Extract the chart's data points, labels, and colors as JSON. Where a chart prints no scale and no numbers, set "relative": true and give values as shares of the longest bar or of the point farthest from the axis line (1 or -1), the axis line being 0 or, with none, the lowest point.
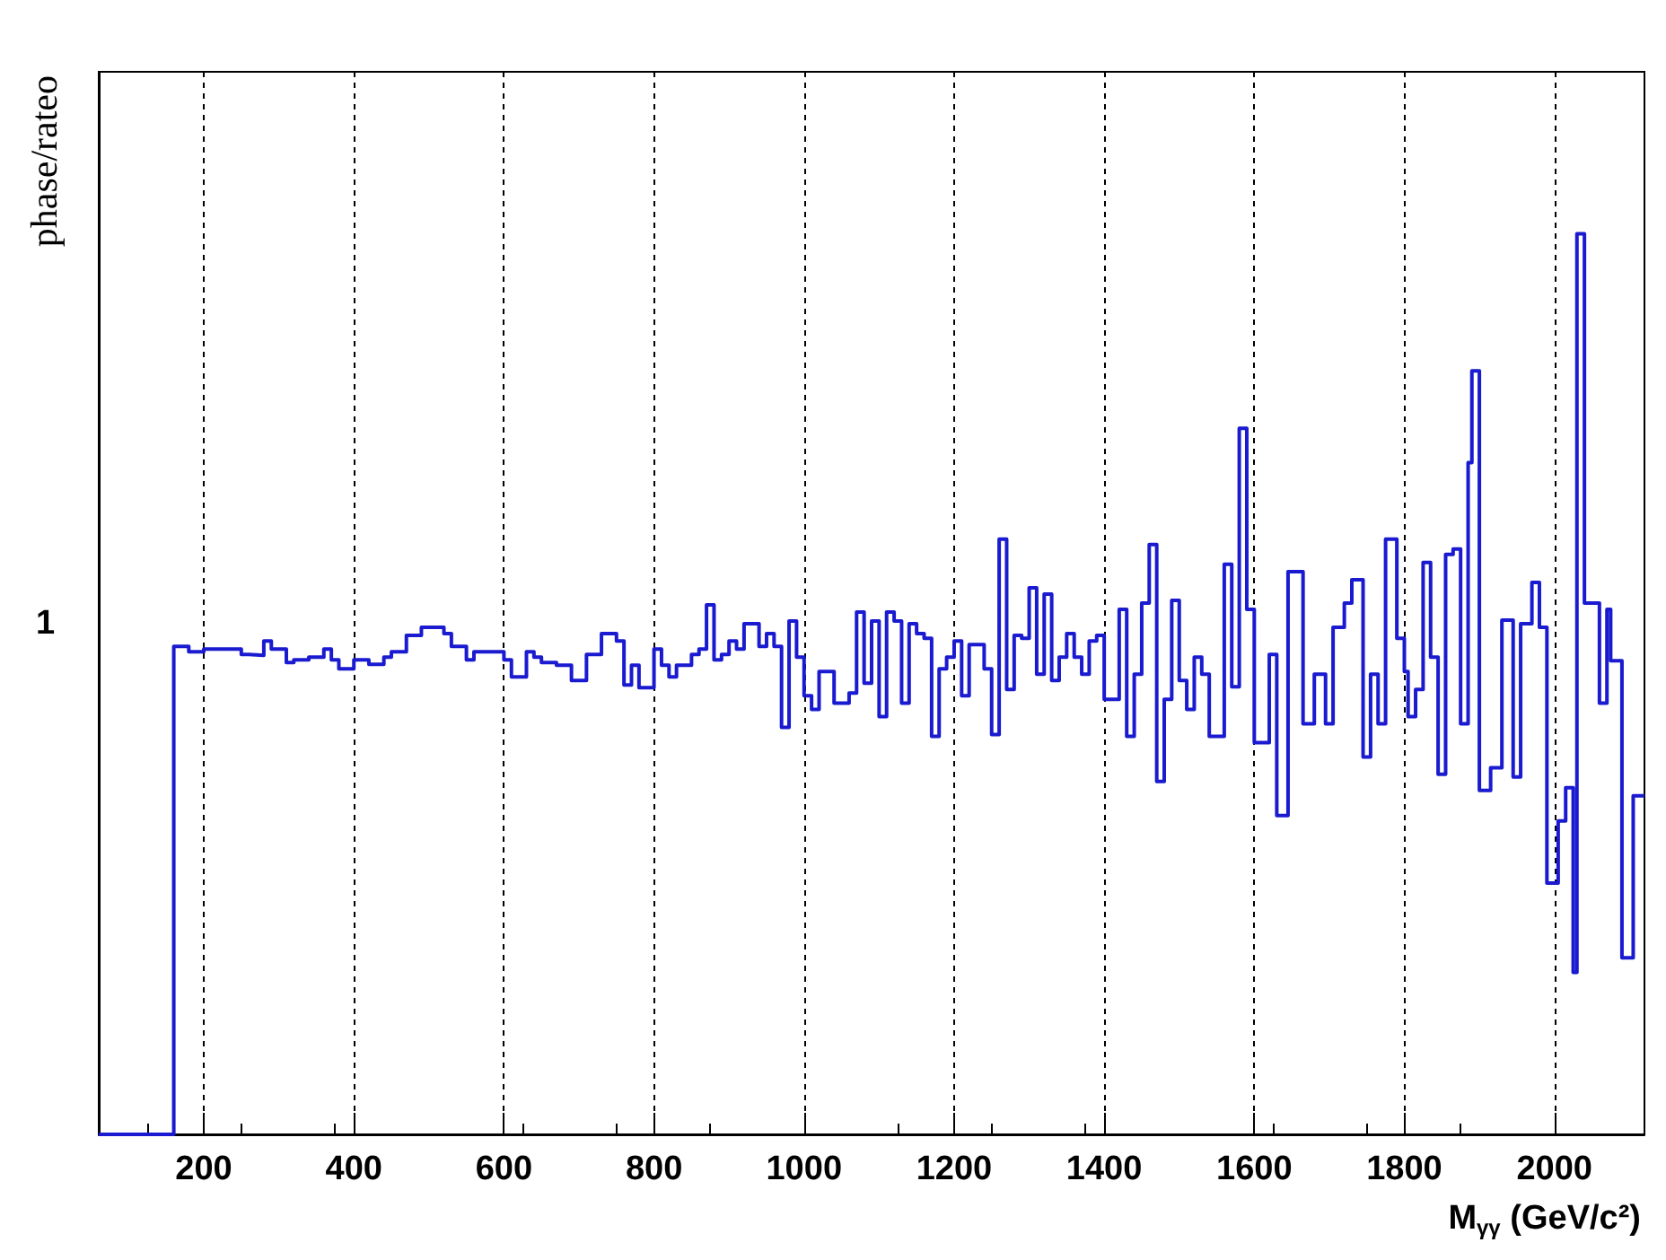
{
  "chart_data": {
    "type": "step",
    "xlabel": "M$_{γγ}$ (GeV/c²)",
    "ylabel": "phase/rateo",
    "relative": true,
    "x": [
      60,
      160,
      180,
      200,
      250,
      260,
      280,
      290,
      310,
      320,
      340,
      360,
      370,
      380,
      400,
      420,
      440,
      450,
      470,
      490,
      520,
      530,
      550,
      560,
      600,
      610,
      630,
      640,
      650,
      670,
      690,
      710,
      730,
      750,
      760,
      770,
      780,
      800,
      810,
      820,
      830,
      850,
      860,
      870,
      880,
      890,
      900,
      910,
      920,
      940,
      950,
      960,
      970,
      980,
      990,
      1000,
      1010,
      1020,
      1040,
      1060,
      1070,
      1080,
      1090,
      1100,
      1110,
      1120,
      1130,
      1140,
      1150,
      1160,
      1170,
      1180,
      1190,
      1200,
      1210,
      1220,
      1240,
      1250,
      1260,
      1270,
      1280,
      1290,
      1300,
      1310,
      1320,
      1330,
      1340,
      1350,
      1360,
      1370,
      1380,
      1390,
      1400,
      1420,
      1430,
      1440,
      1450,
      1460,
      1470,
      1480,
      1490,
      1500,
      1510,
      1520,
      1530,
      1540,
      1560,
      1570,
      1580,
      1590,
      1600,
      1620,
      1630,
      1645,
      1665,
      1680,
      1695,
      1705,
      1720,
      1730,
      1745,
      1755,
      1765,
      1775,
      1790,
      1800,
      1805,
      1815,
      1825,
      1835,
      1845,
      1855,
      1865,
      1875,
      1885,
      1890,
      1900,
      1915,
      1930,
      1945,
      1955,
      1970,
      1980,
      1990,
      2005,
      2015,
      2025,
      2030,
      2040,
      2060,
      2070,
      2075,
      2090,
      2105,
      2120
    ],
    "series": [
      {
        "color": "#1a1ad0",
        "values": [
          0,
          0.542,
          0.536,
          0.539,
          0.533,
          0.532,
          0.548,
          0.539,
          0.524,
          0.527,
          0.53,
          0.539,
          0.527,
          0.517,
          0.527,
          0.522,
          0.53,
          0.536,
          0.554,
          0.563,
          0.556,
          0.542,
          0.527,
          0.536,
          0.527,
          0.508,
          0.536,
          0.53,
          0.524,
          0.521,
          0.504,
          0.533,
          0.556,
          0.548,
          0.499,
          0.521,
          0.496,
          0.539,
          0.521,
          0.508,
          0.521,
          0.533,
          0.539,
          0.588,
          0.527,
          0.533,
          0.548,
          0.539,
          0.567,
          0.542,
          0.556,
          0.542,
          0.452,
          0.57,
          0.53,
          0.487,
          0.472,
          0.514,
          0.479,
          0.49,
          0.58,
          0.501,
          0.57,
          0.464,
          0.58,
          0.57,
          0.479,
          0.567,
          0.556,
          0.551,
          0.442,
          0.517,
          0.53,
          0.548,
          0.487,
          0.544,
          0.517,
          0.444,
          0.661,
          0.494,
          0.554,
          0.551,
          0.607,
          0.511,
          0.6,
          0.504,
          0.53,
          0.556,
          0.53,
          0.511,
          0.548,
          0.554,
          0.483,
          0.583,
          0.442,
          0.511,
          0.59,
          0.655,
          0.392,
          0.483,
          0.593,
          0.504,
          0.472,
          0.53,
          0.511,
          0.442,
          0.633,
          0.497,
          0.784,
          0.583,
          0.435,
          0.533,
          0.354,
          0.625,
          0.456,
          0.511,
          0.456,
          0.563,
          0.59,
          0.616,
          0.419,
          0.511,
          0.456,
          0.661,
          0.551,
          0.514,
          0.464,
          0.494,
          0.635,
          0.53,
          0.4,
          0.644,
          0.65,
          0.456,
          0.746,
          0.848,
          0.382,
          0.407,
          0.571,
          0.397,
          0.567,
          0.613,
          0.563,
          0.279,
          0.348,
          0.385,
          0.18,
          1.0,
          0.59,
          0.479,
          0.583,
          0.526,
          0.196,
          0.376,
          0.376
        ]
      }
    ],
    "annotations": [
      "1"
    ],
    "xlim": [
      60,
      2120
    ],
    "xticks": [
      200,
      400,
      600,
      800,
      1000,
      1200,
      1400,
      1600,
      1800,
      2000
    ],
    "grid": "x"
  }
}
